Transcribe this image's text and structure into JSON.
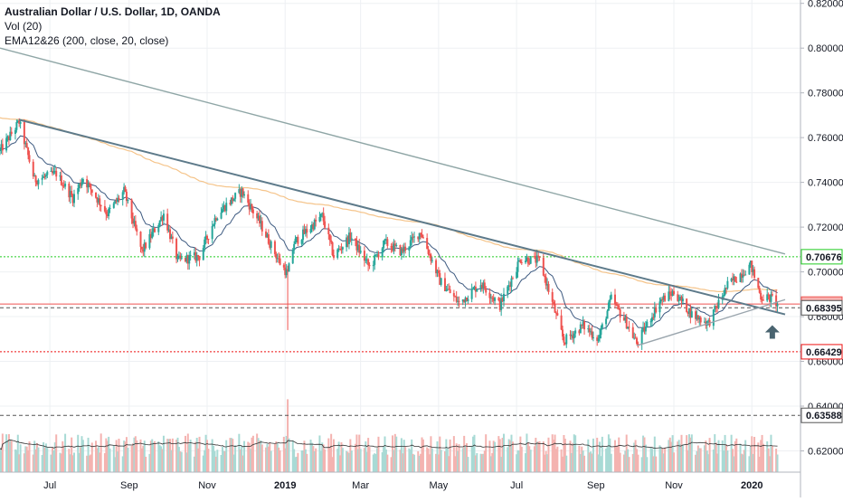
{
  "header": {
    "title": "Australian Dollar / U.S. Dollar, 1D, OANDA",
    "indicator_vol": "Vol (20)",
    "indicator_ema": "EMA12&26 (200, close, 20, close)"
  },
  "chart_data": {
    "type": "candlestick",
    "symbol": "AUDUSD",
    "ylim": [
      0.6105,
      0.8215
    ],
    "y_ticks": [
      {
        "value": 0.62,
        "label": "0.62000"
      },
      {
        "value": 0.64,
        "label": "0.64000"
      },
      {
        "value": 0.66,
        "label": "0.66000"
      },
      {
        "value": 0.68,
        "label": "0.68000"
      },
      {
        "value": 0.7,
        "label": "0.70000"
      },
      {
        "value": 0.72,
        "label": "0.72000"
      },
      {
        "value": 0.74,
        "label": "0.74000"
      },
      {
        "value": 0.76,
        "label": "0.76000"
      },
      {
        "value": 0.78,
        "label": "0.78000"
      },
      {
        "value": 0.8,
        "label": "0.80000"
      },
      {
        "value": 0.82,
        "label": "0.82000"
      }
    ],
    "x_range": [
      "2018-05-23",
      "2020-01-27"
    ],
    "x_ticks": [
      {
        "date": "2018-07-01",
        "label": "Jul",
        "bold": false
      },
      {
        "date": "2018-09-01",
        "label": "Sep",
        "bold": false
      },
      {
        "date": "2018-11-01",
        "label": "Nov",
        "bold": false
      },
      {
        "date": "2019-01-01",
        "label": "2019",
        "bold": true
      },
      {
        "date": "2019-03-01",
        "label": "Mar",
        "bold": false
      },
      {
        "date": "2019-05-01",
        "label": "May",
        "bold": false
      },
      {
        "date": "2019-07-01",
        "label": "Jul",
        "bold": false
      },
      {
        "date": "2019-09-01",
        "label": "Sep",
        "bold": false
      },
      {
        "date": "2019-11-01",
        "label": "Nov",
        "bold": false
      },
      {
        "date": "2020-01-01",
        "label": "2020",
        "bold": true
      }
    ],
    "price_path": [
      [
        "2018-05-23",
        0.754
      ],
      [
        "2018-06-07",
        0.767
      ],
      [
        "2018-06-19",
        0.741
      ],
      [
        "2018-07-06",
        0.744
      ],
      [
        "2018-07-19",
        0.733
      ],
      [
        "2018-07-27",
        0.742
      ],
      [
        "2018-08-15",
        0.726
      ],
      [
        "2018-08-28",
        0.736
      ],
      [
        "2018-09-11",
        0.709
      ],
      [
        "2018-09-28",
        0.726
      ],
      [
        "2018-10-09",
        0.705
      ],
      [
        "2018-10-26",
        0.707
      ],
      [
        "2018-11-08",
        0.725
      ],
      [
        "2018-11-16",
        0.73
      ],
      [
        "2018-11-28",
        0.736
      ],
      [
        "2018-12-12",
        0.722
      ],
      [
        "2018-12-28",
        0.704
      ],
      [
        "2019-01-03",
        0.699
      ],
      [
        "2019-01-08",
        0.713
      ],
      [
        "2019-01-30",
        0.725
      ],
      [
        "2019-02-08",
        0.707
      ],
      [
        "2019-02-21",
        0.716
      ],
      [
        "2019-03-08",
        0.702
      ],
      [
        "2019-03-20",
        0.713
      ],
      [
        "2019-04-02",
        0.709
      ],
      [
        "2019-04-17",
        0.718
      ],
      [
        "2019-05-02",
        0.696
      ],
      [
        "2019-05-17",
        0.686
      ],
      [
        "2019-06-03",
        0.695
      ],
      [
        "2019-06-18",
        0.685
      ],
      [
        "2019-07-04",
        0.706
      ],
      [
        "2019-07-19",
        0.705
      ],
      [
        "2019-08-07",
        0.669
      ],
      [
        "2019-08-22",
        0.676
      ],
      [
        "2019-09-03",
        0.67
      ],
      [
        "2019-09-13",
        0.688
      ],
      [
        "2019-09-26",
        0.676
      ],
      [
        "2019-10-03",
        0.668
      ],
      [
        "2019-10-21",
        0.687
      ],
      [
        "2019-11-01",
        0.691
      ],
      [
        "2019-11-15",
        0.681
      ],
      [
        "2019-11-28",
        0.677
      ],
      [
        "2019-12-13",
        0.694
      ],
      [
        "2019-12-31",
        0.703
      ],
      [
        "2020-01-08",
        0.689
      ],
      [
        "2020-01-17",
        0.688
      ],
      [
        "2020-01-21",
        0.6856
      ]
    ],
    "ema_short": {
      "name": "EMA 20",
      "color": "#3d5a80"
    },
    "ema_long": {
      "name": "EMA 200",
      "color": "#f5c48a"
    },
    "trendlines": [
      {
        "name": "major-down-trendline",
        "color": "#5d7a8a",
        "from": [
          "2018-06-07",
          0.768
        ],
        "to": [
          "2020-01-27",
          0.681
        ]
      },
      {
        "name": "outer-down-trendline",
        "color": "#8fa6a6",
        "from": [
          "2018-05-23",
          0.8
        ],
        "to": [
          "2020-01-27",
          0.708
        ]
      },
      {
        "name": "rising-support-trendline",
        "color": "#9aa5ad",
        "from": [
          "2019-10-03",
          0.667
        ],
        "to": [
          "2020-01-27",
          0.6876
        ]
      }
    ],
    "horizontal_levels": [
      {
        "value": 0.70676,
        "label": "0.70676",
        "color": "#22cc22",
        "style": "dotted"
      },
      {
        "value": 0.68562,
        "label": "0.68562",
        "color": "#ef5350",
        "style": "solid",
        "tag_bg": "#f7b2b0"
      },
      {
        "value": 0.68395,
        "label": "0.68395",
        "color": "#555555",
        "style": "dashed"
      },
      {
        "value": 0.66429,
        "label": "0.66429",
        "color": "#ee1111",
        "style": "dotted"
      },
      {
        "value": 0.63588,
        "label": "0.63588",
        "color": "#555555",
        "style": "dashed"
      }
    ],
    "annotation": {
      "type": "up-arrow",
      "date": "2020-01-17",
      "value": 0.6762,
      "color": "#4a6470"
    },
    "volume": {
      "name": "Vol (20)",
      "band": [
        0.6105,
        0.645
      ],
      "ma_color": "#333333"
    },
    "colors": {
      "up": "#26a69a",
      "down": "#ef5350",
      "up_vol": "#a8dad5",
      "down_vol": "#f4b3b0",
      "grid": "#eef0f3",
      "axis_bg": "#ffffff"
    }
  }
}
